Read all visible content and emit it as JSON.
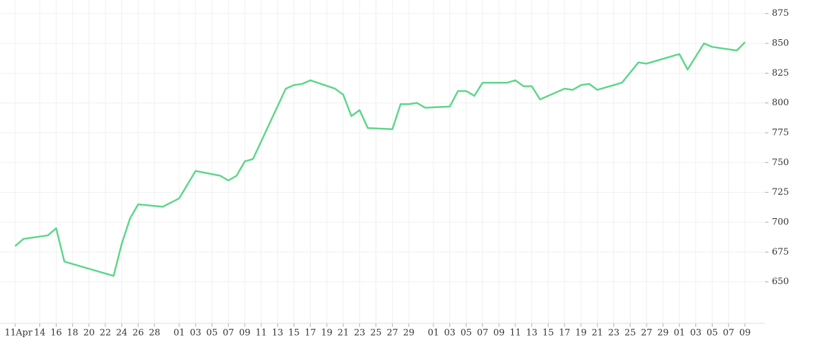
{
  "chart_data": {
    "type": "line",
    "x": [
      "04-11",
      "04-12",
      "04-15",
      "04-16",
      "04-17",
      "04-23",
      "04-24",
      "04-25",
      "04-26",
      "04-29",
      "05-01",
      "05-03",
      "05-06",
      "05-07",
      "05-08",
      "05-09",
      "05-10",
      "05-14",
      "05-15",
      "05-16",
      "05-17",
      "05-20",
      "05-21",
      "05-22",
      "05-23",
      "05-24",
      "05-27",
      "05-28",
      "05-29",
      "05-30",
      "05-31",
      "06-03",
      "06-04",
      "06-05",
      "06-06",
      "06-07",
      "06-10",
      "06-11",
      "06-12",
      "06-13",
      "06-14",
      "06-17",
      "06-18",
      "06-19",
      "06-20",
      "06-21",
      "06-24",
      "06-26",
      "06-27",
      "06-28",
      "07-01",
      "07-02",
      "07-04",
      "07-05",
      "07-08",
      "07-09"
    ],
    "series": [
      {
        "color": "#5cd68a",
        "values": [
          680,
          686,
          689,
          695,
          667,
          655,
          682,
          703,
          715,
          713,
          720,
          743,
          739,
          735,
          739,
          751,
          753,
          812,
          815,
          816,
          819,
          812,
          807,
          789,
          794,
          779,
          778,
          799,
          799,
          800,
          796,
          797,
          810,
          810,
          806,
          817,
          817,
          819,
          814,
          814,
          803,
          812,
          811,
          815,
          816,
          811,
          817,
          834,
          833,
          835,
          841,
          828,
          850,
          847,
          844,
          851
        ]
      }
    ],
    "ylim": [
      625,
      880
    ],
    "yticks": [
      650,
      675,
      700,
      725,
      750,
      775,
      800,
      825,
      850,
      875
    ],
    "xlim": [
      "04-11",
      "07-09"
    ],
    "xticks": [
      {
        "value": "04-11",
        "label": "11"
      },
      {
        "value": "04-14",
        "label": "14"
      },
      {
        "value": "04-16",
        "label": "16"
      },
      {
        "value": "04-18",
        "label": "18"
      },
      {
        "value": "04-20",
        "label": "20"
      },
      {
        "value": "04-22",
        "label": "22"
      },
      {
        "value": "04-24",
        "label": "24"
      },
      {
        "value": "04-26",
        "label": "26"
      },
      {
        "value": "04-28",
        "label": "28"
      },
      {
        "value": "05-01",
        "label": "01"
      },
      {
        "value": "05-03",
        "label": "03"
      },
      {
        "value": "05-05",
        "label": "05"
      },
      {
        "value": "05-07",
        "label": "07"
      },
      {
        "value": "05-09",
        "label": "09"
      },
      {
        "value": "05-11",
        "label": "11"
      },
      {
        "value": "05-13",
        "label": "13"
      },
      {
        "value": "05-15",
        "label": "15"
      },
      {
        "value": "05-17",
        "label": "17"
      },
      {
        "value": "05-19",
        "label": "19"
      },
      {
        "value": "05-21",
        "label": "21"
      },
      {
        "value": "05-23",
        "label": "23"
      },
      {
        "value": "05-25",
        "label": "25"
      },
      {
        "value": "05-27",
        "label": "27"
      },
      {
        "value": "05-29",
        "label": "29"
      },
      {
        "value": "06-01",
        "label": "01"
      },
      {
        "value": "06-03",
        "label": "03"
      },
      {
        "value": "06-05",
        "label": "05"
      },
      {
        "value": "06-07",
        "label": "07"
      },
      {
        "value": "06-09",
        "label": "09"
      },
      {
        "value": "06-11",
        "label": "11"
      },
      {
        "value": "06-13",
        "label": "13"
      },
      {
        "value": "06-15",
        "label": "15"
      },
      {
        "value": "06-17",
        "label": "17"
      },
      {
        "value": "06-19",
        "label": "19"
      },
      {
        "value": "06-21",
        "label": "21"
      },
      {
        "value": "06-23",
        "label": "23"
      },
      {
        "value": "06-25",
        "label": "25"
      },
      {
        "value": "06-27",
        "label": "27"
      },
      {
        "value": "06-29",
        "label": "29"
      },
      {
        "value": "07-01",
        "label": "01"
      },
      {
        "value": "07-03",
        "label": "03"
      },
      {
        "value": "07-05",
        "label": "05"
      },
      {
        "value": "07-07",
        "label": "07"
      },
      {
        "value": "07-09",
        "label": "09"
      }
    ],
    "x_month_labels": [
      {
        "value": "04-11",
        "label": "Apr"
      }
    ],
    "grid": true
  }
}
